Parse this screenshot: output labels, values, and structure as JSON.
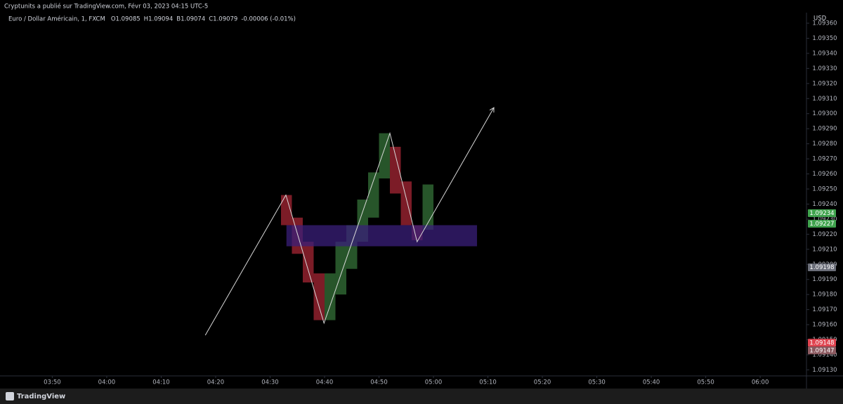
{
  "header": {
    "publisher": "Cryptunits a publié sur TradingView.com, Févr 03, 2023 04:15 UTC-5"
  },
  "legend": {
    "symbol": "Euro / Dollar Américain, 1, FXCM",
    "fields": [
      {
        "key": "O",
        "value": "1.09085"
      },
      {
        "key": "H",
        "value": "1.09094"
      },
      {
        "key": "B",
        "value": "1.09074"
      },
      {
        "key": "C",
        "value": "1.09079"
      }
    ],
    "change": "-0.00006 (-0.01%)"
  },
  "footer": {
    "brand": "TradingView"
  },
  "chart_data": {
    "type": "candlestick",
    "currency": "USD",
    "x": [
      273,
      275,
      277,
      279,
      281,
      283,
      285,
      287,
      289,
      291,
      293,
      295,
      297,
      299
    ],
    "open": [
      1.09246,
      1.09231,
      1.09215,
      1.09194,
      1.09163,
      1.0918,
      1.09197,
      1.09215,
      1.09231,
      1.09257,
      1.09278,
      1.09255,
      1.09226,
      1.09223
    ],
    "close": [
      1.09226,
      1.09207,
      1.09188,
      1.09163,
      1.09194,
      1.09215,
      1.09226,
      1.09243,
      1.09261,
      1.09287,
      1.09247,
      1.09226,
      1.09216,
      1.09253
    ],
    "up_color": "#2b5e2f",
    "down_color": "#8a1f2b",
    "zone": {
      "x": [
        273,
        308
      ],
      "y": [
        1.09212,
        1.09226
      ],
      "color": "#3a1f7a"
    },
    "trend": {
      "x": [
        258.1,
        272.9,
        279.9,
        292,
        297,
        311.1
      ],
      "y": [
        1.09153,
        1.09246,
        1.09161,
        1.09287,
        1.09215,
        1.09304
      ],
      "color": "#d8d8d8"
    },
    "price_labels": [
      {
        "value": 1.09234,
        "color": "#3fa34d"
      },
      {
        "value": 1.09227,
        "color": "#3fa34d"
      },
      {
        "value": 1.09198,
        "color": "#6a6d78"
      },
      {
        "value": 1.09148,
        "color": "#e0434f"
      },
      {
        "value": 1.09147,
        "color": "#8c5a60"
      }
    ],
    "xlim": [
      220.4,
      368.5
    ],
    "ylim": [
      1.09126,
      1.09367
    ],
    "xticks": [
      {
        "value": 230,
        "label": "03:50"
      },
      {
        "value": 240,
        "label": "04:00"
      },
      {
        "value": 250,
        "label": "04:10"
      },
      {
        "value": 260,
        "label": "04:20"
      },
      {
        "value": 270,
        "label": "04:30"
      },
      {
        "value": 280,
        "label": "04:40"
      },
      {
        "value": 290,
        "label": "04:50"
      },
      {
        "value": 300,
        "label": "05:00"
      },
      {
        "value": 310,
        "label": "05:10"
      },
      {
        "value": 320,
        "label": "05:20"
      },
      {
        "value": 330,
        "label": "05:30"
      },
      {
        "value": 340,
        "label": "05:40"
      },
      {
        "value": 350,
        "label": "05:50"
      },
      {
        "value": 360,
        "label": "06:00"
      }
    ],
    "yticks": [
      {
        "value": 1.0913,
        "label": "1.09130"
      },
      {
        "value": 1.0914,
        "label": "1.09140"
      },
      {
        "value": 1.0915,
        "label": "1.09150"
      },
      {
        "value": 1.0916,
        "label": "1.09160"
      },
      {
        "value": 1.0917,
        "label": "1.09170"
      },
      {
        "value": 1.0918,
        "label": "1.09180"
      },
      {
        "value": 1.0919,
        "label": "1.09190"
      },
      {
        "value": 1.092,
        "label": "1.09200"
      },
      {
        "value": 1.0921,
        "label": "1.09210"
      },
      {
        "value": 1.0922,
        "label": "1.09220"
      },
      {
        "value": 1.0923,
        "label": "1.09230"
      },
      {
        "value": 1.0924,
        "label": "1.09240"
      },
      {
        "value": 1.0925,
        "label": "1.09250"
      },
      {
        "value": 1.0926,
        "label": "1.09260"
      },
      {
        "value": 1.0927,
        "label": "1.09270"
      },
      {
        "value": 1.0928,
        "label": "1.09280"
      },
      {
        "value": 1.0929,
        "label": "1.09290"
      },
      {
        "value": 1.093,
        "label": "1.09300"
      },
      {
        "value": 1.0931,
        "label": "1.09310"
      },
      {
        "value": 1.0932,
        "label": "1.09320"
      },
      {
        "value": 1.0933,
        "label": "1.09330"
      },
      {
        "value": 1.0934,
        "label": "1.09340"
      },
      {
        "value": 1.0935,
        "label": "1.09350"
      },
      {
        "value": 1.0936,
        "label": "1.09360"
      }
    ]
  }
}
